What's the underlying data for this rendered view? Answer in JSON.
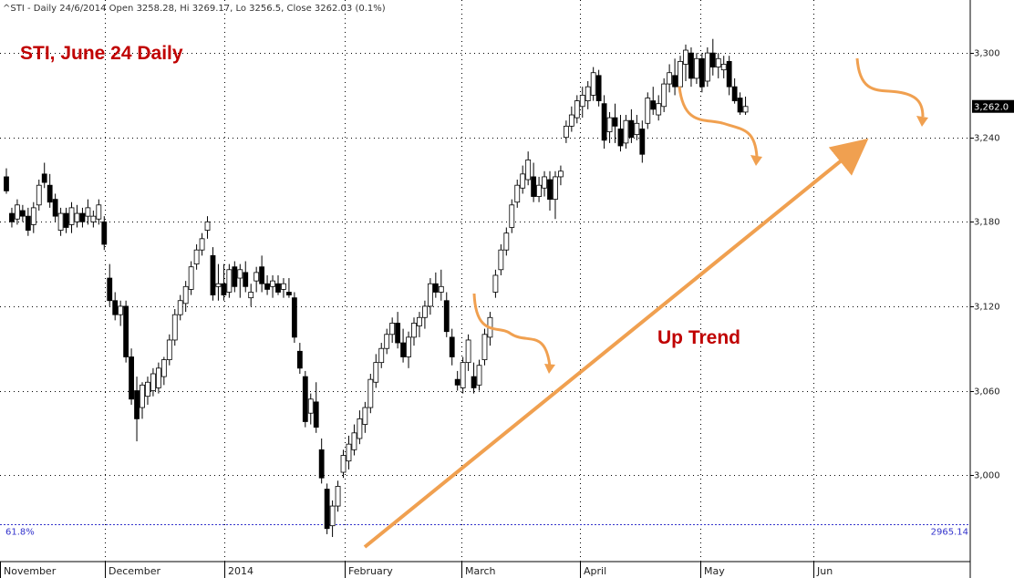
{
  "header": {
    "text": "^STI - Daily 24/6/2014 Open 3258.28, Hi 3269.17, Lo 3256.5, Close 3262.03 (0.1%)"
  },
  "colors": {
    "up_fill": "#ffffff",
    "down_fill": "#000000",
    "candle_stroke": "#000000",
    "title": "#c00000",
    "arrow": "#f0a050",
    "fib_line": "#3333cc",
    "grid": "#000000"
  },
  "chart_data": {
    "type": "candlestick",
    "title": "STI, June 24 Daily",
    "y_ticks": [
      3000,
      3060,
      3120,
      3180,
      3240,
      3300
    ],
    "y_tick_labels": [
      "3,000",
      "3,060",
      "3,120",
      "3,180",
      "3,240",
      "3,300"
    ],
    "ylim": [
      2945,
      3326
    ],
    "x_months": [
      "November",
      "December",
      "2014",
      "February",
      "March",
      "April",
      "May",
      "Jun"
    ],
    "last_price_label": "3,262.0",
    "last_price": 3262.03,
    "fib_level": {
      "label": "61.8%",
      "value_label": "2965.14",
      "value": 2965.14
    },
    "annotations": [
      {
        "text": "Up Trend"
      }
    ],
    "grid": true,
    "candles": [
      [
        3212,
        3218,
        3200,
        3202
      ],
      [
        3186,
        3190,
        3176,
        3180
      ],
      [
        3182,
        3196,
        3178,
        3192
      ],
      [
        3188,
        3192,
        3180,
        3184
      ],
      [
        3184,
        3190,
        3170,
        3174
      ],
      [
        3178,
        3194,
        3172,
        3190
      ],
      [
        3192,
        3210,
        3188,
        3206
      ],
      [
        3214,
        3222,
        3204,
        3208
      ],
      [
        3206,
        3214,
        3190,
        3194
      ],
      [
        3196,
        3200,
        3180,
        3184
      ],
      [
        3174,
        3190,
        3170,
        3186
      ],
      [
        3186,
        3190,
        3172,
        3176
      ],
      [
        3178,
        3194,
        3172,
        3190
      ],
      [
        3180,
        3192,
        3176,
        3186
      ],
      [
        3186,
        3190,
        3176,
        3180
      ],
      [
        3184,
        3196,
        3178,
        3190
      ],
      [
        3180,
        3188,
        3176,
        3184
      ],
      [
        3182,
        3196,
        3178,
        3192
      ],
      [
        3180,
        3184,
        3160,
        3164
      ],
      [
        3140,
        3150,
        3120,
        3124
      ],
      [
        3124,
        3130,
        3110,
        3114
      ],
      [
        3114,
        3124,
        3106,
        3120
      ],
      [
        3120,
        3124,
        3080,
        3084
      ],
      [
        3084,
        3090,
        3050,
        3054
      ],
      [
        3060,
        3070,
        3024,
        3040
      ],
      [
        3048,
        3066,
        3040,
        3064
      ],
      [
        3056,
        3070,
        3050,
        3066
      ],
      [
        3060,
        3076,
        3056,
        3072
      ],
      [
        3062,
        3080,
        3058,
        3076
      ],
      [
        3070,
        3084,
        3064,
        3082
      ],
      [
        3082,
        3100,
        3078,
        3096
      ],
      [
        3096,
        3118,
        3092,
        3114
      ],
      [
        3114,
        3128,
        3110,
        3124
      ],
      [
        3122,
        3138,
        3116,
        3134
      ],
      [
        3132,
        3152,
        3128,
        3148
      ],
      [
        3150,
        3164,
        3146,
        3160
      ],
      [
        3160,
        3172,
        3156,
        3168
      ],
      [
        3174,
        3184,
        3168,
        3180
      ],
      [
        3156,
        3162,
        3124,
        3128
      ],
      [
        3134,
        3150,
        3124,
        3136
      ],
      [
        3136,
        3150,
        3124,
        3128
      ],
      [
        3130,
        3150,
        3126,
        3146
      ],
      [
        3148,
        3152,
        3130,
        3134
      ],
      [
        3140,
        3150,
        3126,
        3146
      ],
      [
        3144,
        3152,
        3130,
        3134
      ],
      [
        3126,
        3136,
        3120,
        3130
      ],
      [
        3138,
        3148,
        3130,
        3144
      ],
      [
        3148,
        3156,
        3130,
        3136
      ],
      [
        3136,
        3142,
        3128,
        3132
      ],
      [
        3134,
        3142,
        3126,
        3138
      ],
      [
        3136,
        3142,
        3128,
        3130
      ],
      [
        3132,
        3140,
        3126,
        3136
      ],
      [
        3130,
        3140,
        3126,
        3128
      ],
      [
        3126,
        3130,
        3094,
        3098
      ],
      [
        3088,
        3094,
        3072,
        3076
      ],
      [
        3070,
        3074,
        3034,
        3038
      ],
      [
        3044,
        3058,
        3036,
        3054
      ],
      [
        3052,
        3066,
        3030,
        3034
      ],
      [
        3018,
        3026,
        2994,
        2998
      ],
      [
        2990,
        2994,
        2958,
        2962
      ],
      [
        2964,
        2982,
        2956,
        2978
      ],
      [
        2978,
        2996,
        2974,
        2992
      ],
      [
        3002,
        3018,
        2998,
        3014
      ],
      [
        3010,
        3028,
        3004,
        3022
      ],
      [
        3018,
        3036,
        3014,
        3030
      ],
      [
        3026,
        3046,
        3022,
        3040
      ],
      [
        3036,
        3052,
        3030,
        3048
      ],
      [
        3048,
        3072,
        3044,
        3068
      ],
      [
        3066,
        3086,
        3062,
        3080
      ],
      [
        3080,
        3094,
        3076,
        3090
      ],
      [
        3090,
        3104,
        3086,
        3100
      ],
      [
        3100,
        3112,
        3094,
        3108
      ],
      [
        3108,
        3116,
        3090,
        3094
      ],
      [
        3094,
        3104,
        3080,
        3084
      ],
      [
        3084,
        3102,
        3076,
        3098
      ],
      [
        3098,
        3112,
        3092,
        3108
      ],
      [
        3106,
        3116,
        3098,
        3112
      ],
      [
        3112,
        3124,
        3104,
        3120
      ],
      [
        3120,
        3140,
        3114,
        3136
      ],
      [
        3136,
        3144,
        3126,
        3130
      ],
      [
        3130,
        3146,
        3124,
        3134
      ],
      [
        3124,
        3130,
        3098,
        3102
      ],
      [
        3098,
        3104,
        3078,
        3084
      ],
      [
        3068,
        3074,
        3060,
        3064
      ],
      [
        3062,
        3084,
        3058,
        3080
      ],
      [
        3080,
        3100,
        3074,
        3096
      ],
      [
        3070,
        3080,
        3058,
        3062
      ],
      [
        3064,
        3082,
        3060,
        3078
      ],
      [
        3082,
        3104,
        3078,
        3100
      ],
      [
        3098,
        3116,
        3092,
        3112
      ],
      [
        3130,
        3146,
        3126,
        3142
      ],
      [
        3146,
        3164,
        3142,
        3160
      ],
      [
        3160,
        3176,
        3156,
        3172
      ],
      [
        3176,
        3196,
        3172,
        3192
      ],
      [
        3194,
        3210,
        3190,
        3206
      ],
      [
        3204,
        3220,
        3200,
        3214
      ],
      [
        3210,
        3230,
        3206,
        3224
      ],
      [
        3212,
        3222,
        3194,
        3198
      ],
      [
        3198,
        3212,
        3194,
        3206
      ],
      [
        3204,
        3216,
        3198,
        3212
      ],
      [
        3210,
        3216,
        3188,
        3196
      ],
      [
        3196,
        3216,
        3182,
        3212
      ],
      [
        3212,
        3220,
        3206,
        3216
      ],
      [
        3240,
        3252,
        3236,
        3248
      ],
      [
        3248,
        3262,
        3244,
        3256
      ],
      [
        3254,
        3270,
        3250,
        3266
      ],
      [
        3262,
        3276,
        3254,
        3270
      ],
      [
        3266,
        3280,
        3260,
        3276
      ],
      [
        3270,
        3290,
        3266,
        3286
      ],
      [
        3284,
        3288,
        3262,
        3266
      ],
      [
        3264,
        3270,
        3232,
        3238
      ],
      [
        3244,
        3258,
        3236,
        3254
      ],
      [
        3254,
        3264,
        3236,
        3248
      ],
      [
        3246,
        3256,
        3230,
        3234
      ],
      [
        3236,
        3256,
        3232,
        3252
      ],
      [
        3252,
        3260,
        3236,
        3240
      ],
      [
        3242,
        3256,
        3238,
        3250
      ],
      [
        3246,
        3252,
        3222,
        3228
      ],
      [
        3250,
        3272,
        3246,
        3268
      ],
      [
        3266,
        3276,
        3256,
        3260
      ],
      [
        3256,
        3270,
        3252,
        3264
      ],
      [
        3262,
        3282,
        3258,
        3278
      ],
      [
        3278,
        3292,
        3272,
        3286
      ],
      [
        3284,
        3296,
        3270,
        3276
      ],
      [
        3276,
        3298,
        3272,
        3294
      ],
      [
        3292,
        3306,
        3280,
        3302
      ],
      [
        3300,
        3304,
        3276,
        3282
      ],
      [
        3282,
        3300,
        3278,
        3296
      ],
      [
        3296,
        3300,
        3272,
        3276
      ],
      [
        3280,
        3304,
        3276,
        3300
      ],
      [
        3300,
        3310,
        3284,
        3290
      ],
      [
        3290,
        3300,
        3282,
        3296
      ],
      [
        3288,
        3298,
        3282,
        3292
      ],
      [
        3294,
        3298,
        3270,
        3276
      ],
      [
        3276,
        3282,
        3264,
        3266
      ],
      [
        3268,
        3272,
        3256,
        3258
      ],
      [
        3258,
        3269,
        3256,
        3262
      ]
    ]
  }
}
